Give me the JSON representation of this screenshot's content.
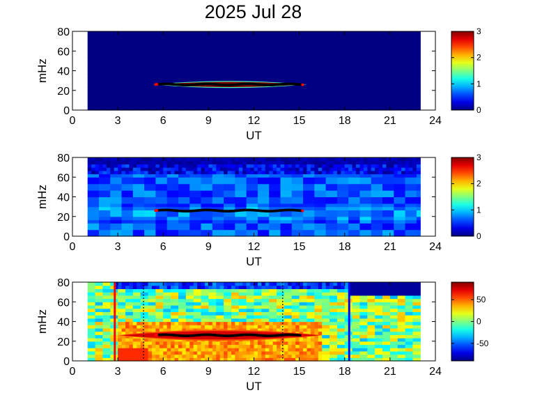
{
  "title": "2025 Jul 28",
  "chart_data": [
    {
      "type": "heatmap",
      "xlabel": "UT",
      "ylabel": "mHz",
      "xlim": [
        0,
        24
      ],
      "ylim": [
        0,
        80
      ],
      "x_ticks": [
        "0",
        "3",
        "6",
        "9",
        "12",
        "15",
        "18",
        "21",
        "24"
      ],
      "y_ticks": [
        "0",
        "20",
        "40",
        "60",
        "80"
      ],
      "data_range_ut": [
        1,
        23
      ],
      "colorbar": {
        "min": 0,
        "max": 3,
        "ticks": [
          "0",
          "1",
          "2",
          "3"
        ]
      },
      "background_level": 0,
      "band": {
        "ut_start": 5.3,
        "ut_end": 15.5,
        "freq_mhz": 26,
        "level": 3
      },
      "detections": {
        "ut_start": 5.5,
        "ut_end": 15.3,
        "freq_mhz": 26
      }
    },
    {
      "type": "heatmap",
      "xlabel": "UT",
      "ylabel": "mHz",
      "xlim": [
        0,
        24
      ],
      "ylim": [
        0,
        80
      ],
      "x_ticks": [
        "0",
        "3",
        "6",
        "9",
        "12",
        "15",
        "18",
        "21",
        "24"
      ],
      "y_ticks": [
        "0",
        "20",
        "40",
        "60",
        "80"
      ],
      "data_range_ut": [
        1,
        23
      ],
      "colorbar": {
        "min": 0,
        "max": 3,
        "ticks": [
          "0",
          "1",
          "2",
          "3"
        ]
      },
      "background_level": 0.6,
      "detections": {
        "ut_start": 5.5,
        "ut_end": 15.3,
        "freq_mhz": 26
      }
    },
    {
      "type": "heatmap",
      "xlabel": "UT",
      "ylabel": "mHz",
      "xlim": [
        0,
        24
      ],
      "ylim": [
        0,
        80
      ],
      "x_ticks": [
        "0",
        "3",
        "6",
        "9",
        "12",
        "15",
        "18",
        "21",
        "24"
      ],
      "y_ticks": [
        "0",
        "20",
        "40",
        "60",
        "80"
      ],
      "data_range_ut": [
        1,
        23
      ],
      "colorbar": {
        "min": -90,
        "max": 90,
        "ticks": [
          "50",
          "0",
          "-50"
        ]
      },
      "background_level": 0,
      "band": {
        "ut_start": 3,
        "ut_end": 16.5,
        "freq_mhz": 26,
        "level": 75
      },
      "detections": {
        "ut_start": 5.5,
        "ut_end": 15.3,
        "freq_mhz": 26
      },
      "markers": [
        {
          "ut": 2.8,
          "style": "solid",
          "color": "#ff0000"
        },
        {
          "ut": 4.7,
          "style": "dotted",
          "color": "#000000"
        },
        {
          "ut": 13.9,
          "style": "dotted",
          "color": "#000000"
        },
        {
          "ut": 18.3,
          "style": "solid",
          "color": "#0000ff"
        }
      ]
    }
  ]
}
